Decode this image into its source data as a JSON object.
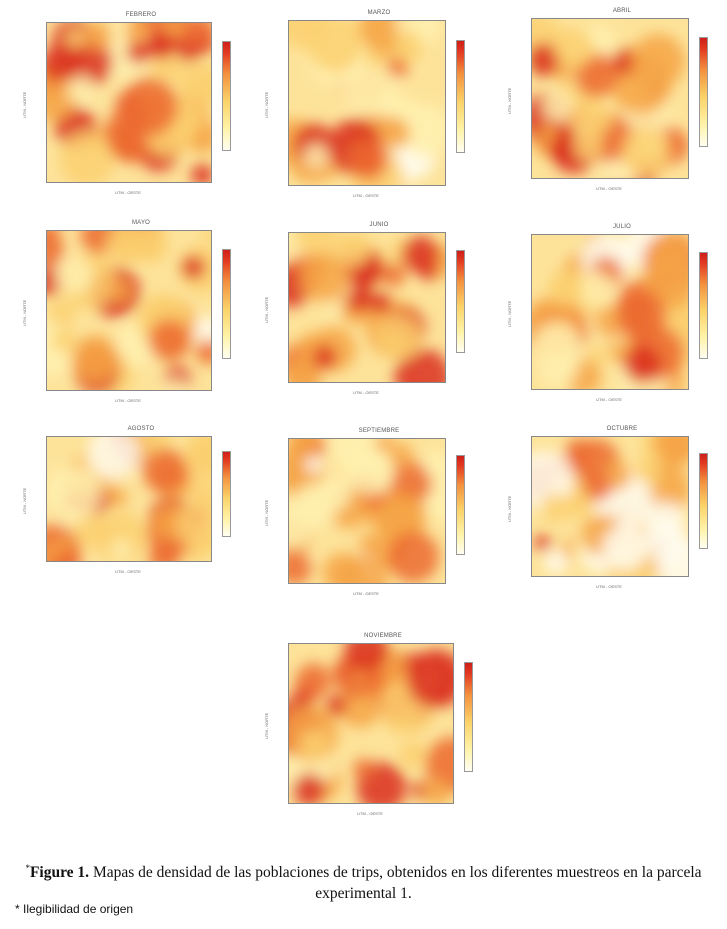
{
  "chart_data": [
    {
      "type": "heatmap",
      "title": "FEBRERO",
      "xlabel": "UTM - OESTE",
      "ylabel": "UTM - NORTE",
      "intensity": 0.75
    },
    {
      "type": "heatmap",
      "title": "MARZO",
      "xlabel": "UTM - OESTE",
      "ylabel": "UTM - NORTE",
      "intensity": 0.55
    },
    {
      "type": "heatmap",
      "title": "ABRIL",
      "xlabel": "UTM - OESTE",
      "ylabel": "UTM - NORTE",
      "intensity": 0.62
    },
    {
      "type": "heatmap",
      "title": "MAYO",
      "xlabel": "UTM - OESTE",
      "ylabel": "UTM - NORTE",
      "intensity": 0.58
    },
    {
      "type": "heatmap",
      "title": "JUNIO",
      "xlabel": "UTM - OESTE",
      "ylabel": "UTM - NORTE",
      "intensity": 0.8
    },
    {
      "type": "heatmap",
      "title": "JULIO",
      "xlabel": "UTM - OESTE",
      "ylabel": "UTM - NORTE",
      "intensity": 0.5
    },
    {
      "type": "heatmap",
      "title": "AGOSTO",
      "xlabel": "UTM - OESTE",
      "ylabel": "UTM - NORTE",
      "intensity": 0.6
    },
    {
      "type": "heatmap",
      "title": "SEPTIEMBRE",
      "xlabel": "UTM - OESTE",
      "ylabel": "UTM - NORTE",
      "intensity": 0.4
    },
    {
      "type": "heatmap",
      "title": "OCTUBRE",
      "xlabel": "UTM - OESTE",
      "ylabel": "UTM - NORTE",
      "intensity": 0.45
    },
    {
      "type": "heatmap",
      "title": "NOVIEMBRE",
      "xlabel": "UTM - OESTE",
      "ylabel": "UTM - NORTE",
      "intensity": 0.85
    }
  ],
  "caption": {
    "star": "*",
    "label": "Figure 1.",
    "text": " Mapas de densidad de las poblaciones de trips, obtenidos en los diferentes muestreos en la parcela experimental 1."
  },
  "note": "* Ilegibilidad de origen",
  "colors": {
    "low": "#fffef2",
    "mid": "#f8c04e",
    "high": "#d9261d"
  }
}
